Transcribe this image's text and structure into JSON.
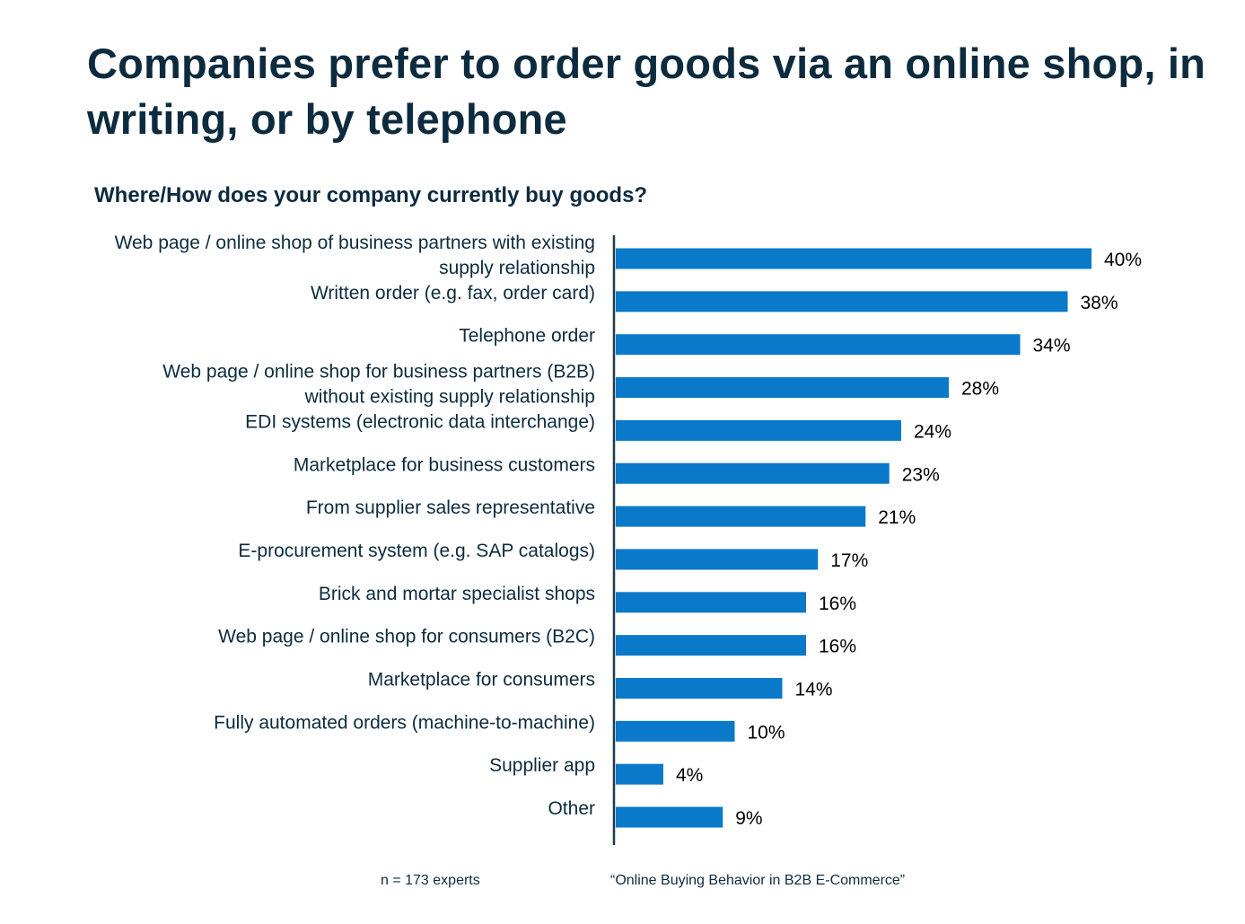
{
  "title": "Companies prefer to order goods via an online shop, in writing, or by telephone",
  "subtitle": "Where/How does your company currently buy goods?",
  "footer": {
    "note": "n = 173 experts",
    "source": "“Online Buying Behavior in B2B E-Commerce”"
  },
  "colors": {
    "bar": "#0a79c9",
    "axis": "#1f3a48"
  },
  "chart_data": {
    "type": "bar",
    "orientation": "horizontal",
    "title": "Companies prefer to order goods via an online shop, in writing, or by telephone",
    "subtitle": "Where/How does your company currently buy goods?",
    "unit": "%",
    "xlim": [
      0,
      40
    ],
    "grid": false,
    "legend": "none",
    "categories": [
      [
        "Web page / online shop of business partners with existing",
        "supply relationship"
      ],
      [
        "Written order (e.g. fax, order card)"
      ],
      [
        "Telephone order"
      ],
      [
        "Web page / online shop for business partners (B2B)",
        "without existing supply relationship"
      ],
      [
        "EDI systems (electronic data interchange)"
      ],
      [
        "Marketplace for business customers"
      ],
      [
        "From supplier sales representative"
      ],
      [
        "E-procurement system (e.g. SAP catalogs)"
      ],
      [
        "Brick and mortar specialist shops"
      ],
      [
        "Web page / online shop for consumers (B2C)"
      ],
      [
        "Marketplace for consumers"
      ],
      [
        "Fully automated orders (machine-to-machine)"
      ],
      [
        "Supplier app"
      ],
      [
        "Other"
      ]
    ],
    "values": [
      40,
      38,
      34,
      28,
      24,
      23,
      21,
      17,
      16,
      16,
      14,
      10,
      4,
      9
    ],
    "value_labels": [
      "40%",
      "38%",
      "34%",
      "28%",
      "24%",
      "23%",
      "21%",
      "17%",
      "16%",
      "16%",
      "14%",
      "10%",
      "4%",
      "9%"
    ]
  }
}
